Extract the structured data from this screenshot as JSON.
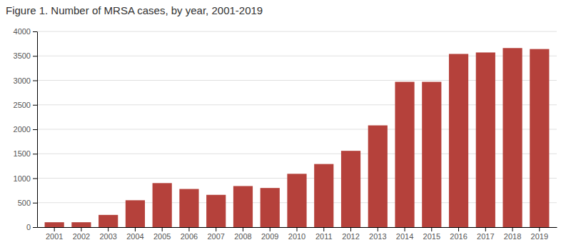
{
  "chart_data": {
    "type": "bar",
    "title": "Figure 1. Number of MRSA cases,  by year, 2001-2019",
    "categories": [
      "2001",
      "2002",
      "2003",
      "2004",
      "2005",
      "2006",
      "2007",
      "2008",
      "2009",
      "2010",
      "2011",
      "2012",
      "2013",
      "2014",
      "2015",
      "2016",
      "2017",
      "2018",
      "2019"
    ],
    "values": [
      100,
      100,
      250,
      550,
      900,
      780,
      660,
      840,
      800,
      1090,
      1290,
      1560,
      2080,
      2970,
      2970,
      3540,
      3570,
      3660,
      3640
    ],
    "color": "#b5413b",
    "ylim": [
      0,
      4000
    ],
    "yticks": [
      0,
      500,
      1000,
      1500,
      2000,
      2500,
      3000,
      3500,
      4000
    ],
    "grid": true
  }
}
